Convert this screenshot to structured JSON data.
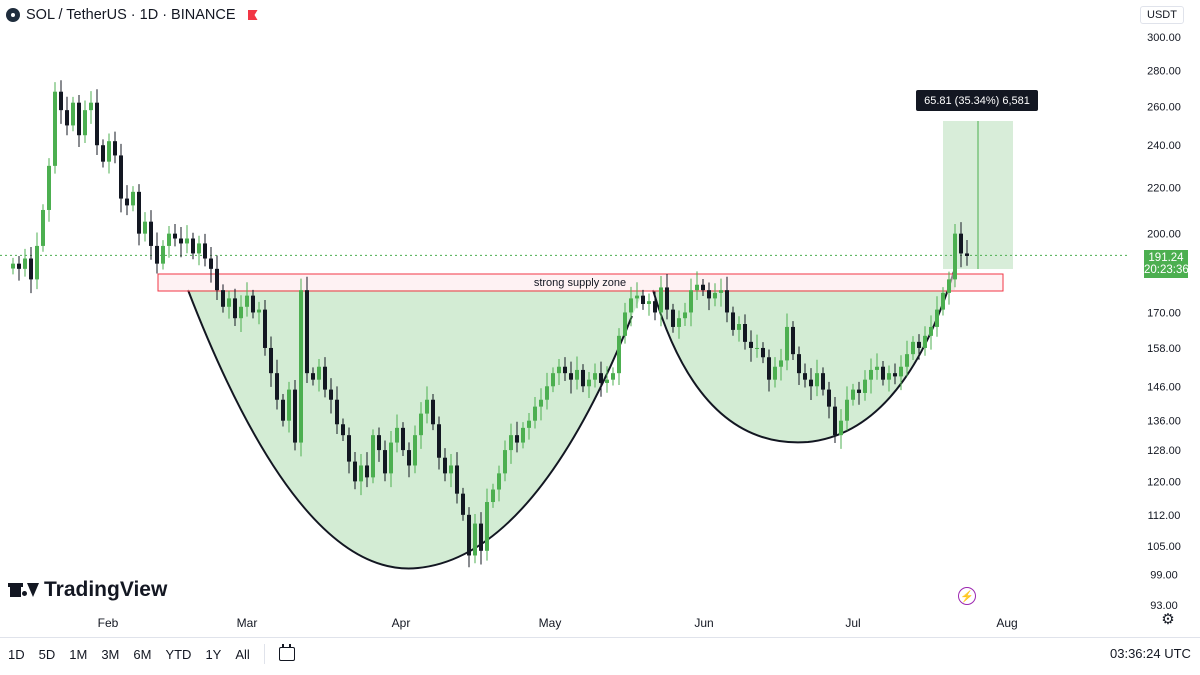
{
  "header": {
    "symbol": "SOL",
    "quote": "TetherUS",
    "interval": "1D",
    "exchange": "BINANCE",
    "title": "SOL / TetherUS · 1D · BINANCE"
  },
  "price_unit": "USDT",
  "brand": "TradingView",
  "range_buttons": [
    "1D",
    "5D",
    "1M",
    "3M",
    "6M",
    "YTD",
    "1Y",
    "All"
  ],
  "clock": "03:36:24 UTC",
  "last_price": {
    "price": "191.24",
    "countdown": "20:23:36"
  },
  "measure_label": "65.81 (35.34%) 6,581",
  "annotations": {
    "supply_zone": "strong supply zone"
  },
  "colors": {
    "up": "#4caf50",
    "down": "#131722",
    "fill": "#c8e6c9",
    "zone": "#f23645",
    "accent": "#2962ff"
  },
  "icons": {
    "symbol": "sol-coin-icon",
    "flag": "flag-icon",
    "alert": "lightning-icon",
    "settings": "gear-icon",
    "calendar": "calendar-range-icon"
  },
  "chart_data": {
    "type": "candlestick",
    "log_scale": true,
    "y_ticks": [
      "300.00",
      "280.00",
      "260.00",
      "240.00",
      "220.00",
      "200.00",
      "170.00",
      "158.00",
      "146.00",
      "136.00",
      "128.00",
      "120.00",
      "112.00",
      "105.00",
      "99.00",
      "93.00"
    ],
    "x_ticks": [
      "Feb",
      "Mar",
      "Apr",
      "May",
      "Jun",
      "Jul",
      "Aug"
    ],
    "closes": [
      188,
      186,
      190,
      182,
      195,
      210,
      230,
      268,
      258,
      250,
      262,
      245,
      258,
      262,
      240,
      232,
      242,
      235,
      215,
      212,
      218,
      200,
      205,
      195,
      188,
      195,
      200,
      198,
      196,
      198,
      192,
      196,
      190,
      186,
      178,
      172,
      175,
      168,
      172,
      176,
      170,
      171,
      158,
      150,
      142,
      136,
      145,
      130,
      178,
      150,
      148,
      152,
      145,
      142,
      135,
      132,
      125,
      120,
      124,
      121,
      132,
      128,
      122,
      130,
      134,
      128,
      124,
      132,
      138,
      142,
      135,
      126,
      122,
      124,
      117,
      112,
      103,
      110,
      104,
      115,
      118,
      122,
      128,
      132,
      130,
      134,
      136,
      140,
      142,
      146,
      150,
      152,
      150,
      148,
      151,
      146,
      148,
      150,
      147,
      148,
      150,
      162,
      170,
      175,
      176,
      173,
      174,
      170,
      179,
      171,
      165,
      168,
      170,
      178,
      180,
      178,
      175,
      177,
      178,
      170,
      164,
      166,
      160,
      158,
      158,
      155,
      148,
      152,
      154,
      165,
      156,
      150,
      148,
      146,
      150,
      145,
      140,
      132,
      136,
      142,
      145,
      144,
      148,
      151,
      152,
      148,
      150,
      149,
      152,
      156,
      160,
      158,
      162,
      165,
      171,
      177,
      182,
      200,
      192,
      191
    ],
    "current_price": 191.24
  }
}
